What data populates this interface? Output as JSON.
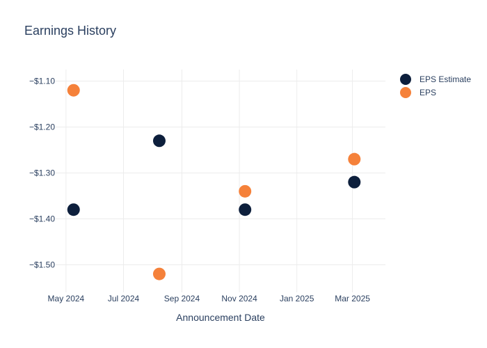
{
  "chart_data": {
    "type": "scatter",
    "title": "Earnings History",
    "xlabel": "Announcement Date",
    "ylabel": "",
    "x_axis": {
      "type": "date",
      "range": [
        "2024-04-20",
        "2025-04-05"
      ],
      "tick_values": [
        "2024-05-01",
        "2024-07-01",
        "2024-09-01",
        "2024-11-01",
        "2025-01-01",
        "2025-03-01"
      ],
      "tick_labels": [
        "May 2024",
        "Jul 2024",
        "Sep 2024",
        "Nov 2024",
        "Jan 2025",
        "Mar 2025"
      ]
    },
    "y_axis": {
      "range": [
        -1.56,
        -1.075
      ],
      "tick_values": [
        -1.1,
        -1.2,
        -1.3,
        -1.4,
        -1.5
      ],
      "tick_labels": [
        "−$1.10",
        "−$1.20",
        "−$1.30",
        "−$1.40",
        "−$1.50"
      ]
    },
    "grid": true,
    "legend": {
      "position": "top-right"
    },
    "series": [
      {
        "name": "EPS Estimate",
        "color": "#0d1f3c",
        "points": [
          {
            "x": "2024-05-09",
            "y": -1.38
          },
          {
            "x": "2024-08-08",
            "y": -1.23
          },
          {
            "x": "2024-11-07",
            "y": -1.38
          },
          {
            "x": "2025-03-03",
            "y": -1.32
          }
        ]
      },
      {
        "name": "EPS",
        "color": "#f5813a",
        "points": [
          {
            "x": "2024-05-09",
            "y": -1.12
          },
          {
            "x": "2024-08-08",
            "y": -1.52
          },
          {
            "x": "2024-11-07",
            "y": -1.34
          },
          {
            "x": "2025-03-03",
            "y": -1.27
          }
        ]
      }
    ]
  }
}
